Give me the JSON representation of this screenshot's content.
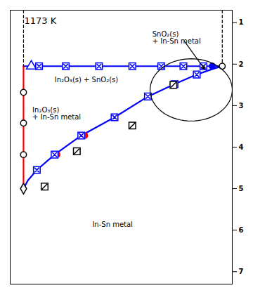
{
  "chart_data": {
    "type": "line",
    "title": "1173 K",
    "xlim": [
      0.0,
      1.0
    ],
    "xticks": [],
    "ylim": [
      7.3,
      0.7
    ],
    "yticks": [
      1,
      2,
      3,
      4,
      5,
      6,
      7
    ],
    "tick_labels": "y",
    "grid": false,
    "series": [
      {
        "type": "line",
        "color": "blue",
        "line_style": "solid",
        "x": [
          0.06,
          0.08,
          0.12,
          0.2,
          0.32,
          0.47,
          0.62,
          0.74,
          0.84,
          0.91,
          0.955
        ],
        "values": [
          5.0,
          4.8,
          4.55,
          4.18,
          3.72,
          3.28,
          2.78,
          2.48,
          2.25,
          2.12,
          2.05
        ]
      },
      {
        "type": "line",
        "color": "blue",
        "line_style": "solid",
        "x": [
          0.06,
          0.13,
          0.25,
          0.4,
          0.55,
          0.68,
          0.78,
          0.87,
          0.955
        ],
        "values": [
          2.05,
          2.05,
          2.05,
          2.05,
          2.05,
          2.05,
          2.05,
          2.05,
          2.05
        ]
      },
      {
        "type": "line",
        "color": "red",
        "line_style": "solid",
        "x": [
          0.06,
          0.06
        ],
        "values": [
          2.05,
          5.0
        ]
      },
      {
        "type": "line",
        "color": "black",
        "line_style": "dashed",
        "x": [
          0.06,
          0.06
        ],
        "values": [
          0.7,
          2.05
        ]
      },
      {
        "type": "line",
        "color": "black",
        "line_style": "dashed",
        "x": [
          0.955,
          0.955
        ],
        "values": [
          0.7,
          2.05
        ]
      },
      {
        "type": "scatter",
        "color": "black",
        "marker": "circle-open",
        "x": [
          0.06,
          0.06,
          0.06
        ],
        "values": [
          2.68,
          3.42,
          4.18
        ]
      },
      {
        "type": "scatter",
        "color": "black",
        "marker": "diamond-open",
        "x": [
          0.06
        ],
        "values": [
          5.0
        ]
      },
      {
        "type": "scatter",
        "color": "blue",
        "marker": "triangle-open",
        "x": [
          0.095
        ],
        "values": [
          2.05
        ]
      },
      {
        "type": "scatter",
        "color": "blue",
        "marker": "circle",
        "x": [
          0.47,
          0.91
        ],
        "values": [
          3.28,
          2.05
        ]
      },
      {
        "type": "scatter",
        "color": "red",
        "marker": "circle",
        "x": [
          0.21,
          0.335
        ],
        "values": [
          4.18,
          3.72
        ]
      },
      {
        "type": "scatter",
        "color": "black",
        "marker": "circle-open",
        "x": [
          0.955
        ],
        "values": [
          2.05
        ]
      },
      {
        "type": "scatter",
        "color": "blue",
        "marker": "square-x",
        "x": [
          0.12,
          0.2,
          0.32,
          0.47,
          0.62,
          0.74,
          0.84
        ],
        "values": [
          4.55,
          4.18,
          3.72,
          3.28,
          2.78,
          2.48,
          2.25
        ]
      },
      {
        "type": "scatter",
        "color": "blue",
        "marker": "square-x",
        "x": [
          0.13,
          0.25,
          0.4,
          0.55,
          0.68,
          0.78,
          0.87
        ],
        "values": [
          2.05,
          2.05,
          2.05,
          2.05,
          2.05,
          2.05,
          2.05
        ]
      },
      {
        "type": "scatter",
        "color": "black",
        "marker": "square-slash",
        "x": [
          0.155,
          0.3,
          0.55,
          0.735
        ],
        "values": [
          4.95,
          4.1,
          3.48,
          2.5
        ]
      }
    ],
    "annotations": [
      {
        "text": "SnO₂(s)\n+ In-Sn metal",
        "x": 0.64,
        "y": 1.22
      },
      {
        "text": "In₂O₃(s) + SnO₂(s)",
        "x": 0.2,
        "y": 2.32
      },
      {
        "text": "In₂O₃(s)\n+ In-Sn metal",
        "x": 0.1,
        "y": 3.05
      },
      {
        "text": "In-Sn metal",
        "x": 0.37,
        "y": 5.8
      }
    ],
    "ellipse": {
      "cx": 0.815,
      "cy": 2.62,
      "rx": 0.185,
      "ry": 0.75
    },
    "arrow": {
      "x1": 0.785,
      "y1": 1.45,
      "x2": 0.875,
      "y2": 2.12
    }
  }
}
